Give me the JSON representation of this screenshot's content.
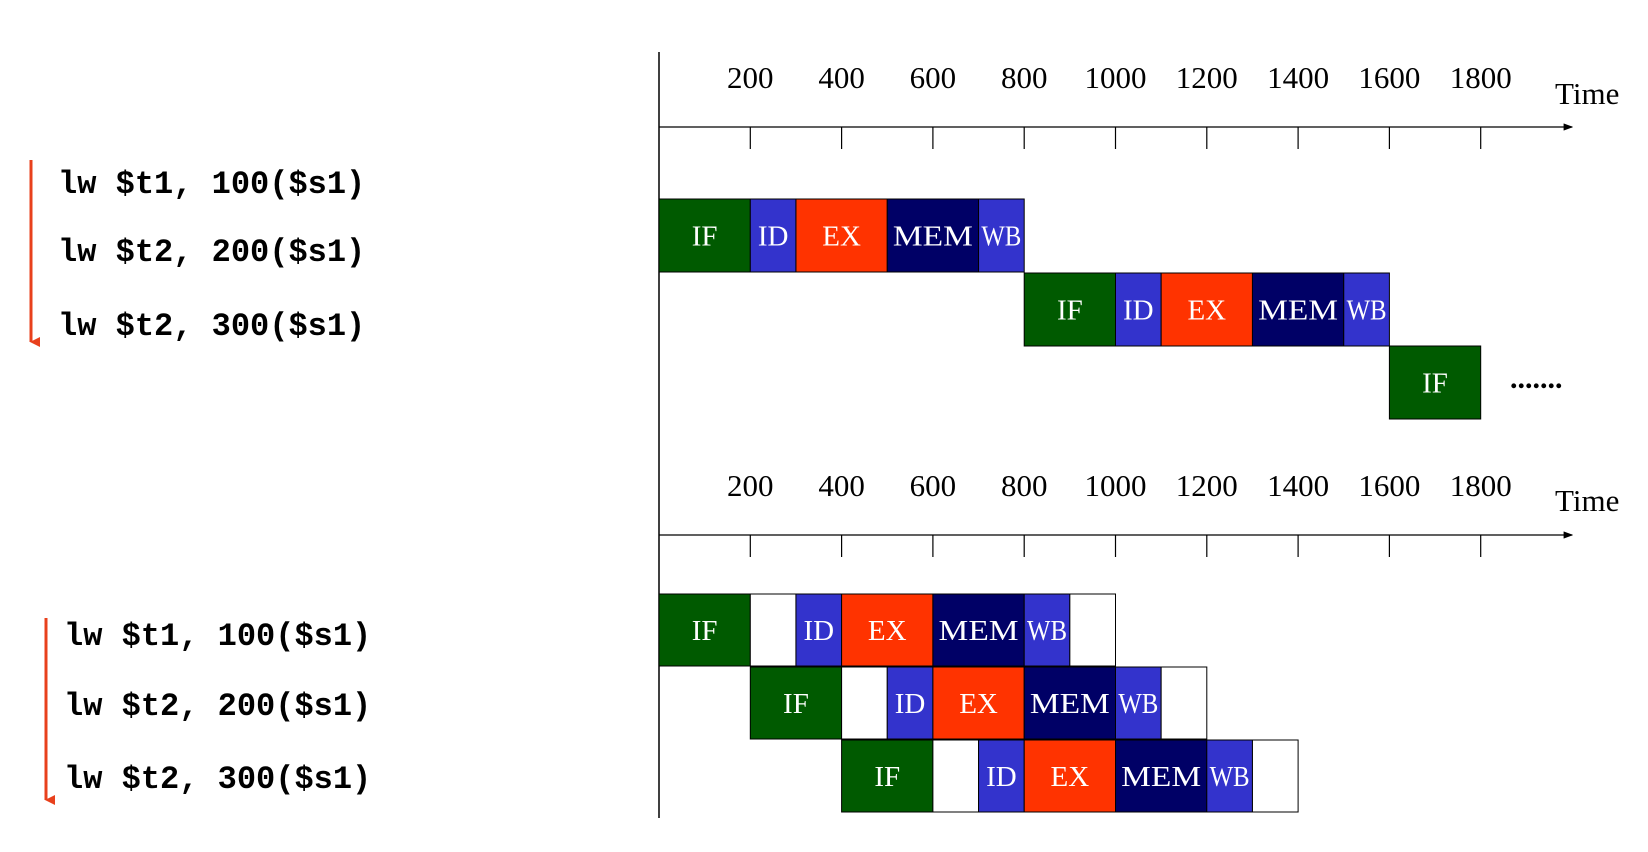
{
  "colors": {
    "IF": "#005a00",
    "ID": "#3333cc",
    "EX": "#ff3300",
    "MEM": "#000066",
    "WB": "#3333cc",
    "arrow": "#e8401c",
    "empty": "#ffffff"
  },
  "top": {
    "axis_title": "Time",
    "ticks": [
      "200",
      "400",
      "600",
      "800",
      "1000",
      "1200",
      "1400",
      "1600",
      "1800"
    ],
    "instructions": [
      "lw $t1, 100($s1)",
      "lw $t2, 200($s1)",
      "lw $t2, 300($s1)"
    ],
    "rows": [
      [
        [
          "IF",
          0,
          200
        ],
        [
          "ID",
          200,
          300
        ],
        [
          "EX",
          300,
          500
        ],
        [
          "MEM",
          500,
          700
        ],
        [
          "WB",
          700,
          800
        ]
      ],
      [
        [
          "IF",
          800,
          1000
        ],
        [
          "ID",
          1000,
          1100
        ],
        [
          "EX",
          1100,
          1300
        ],
        [
          "MEM",
          1300,
          1500
        ],
        [
          "WB",
          1500,
          1600
        ]
      ],
      [
        [
          "IF",
          1600,
          1800
        ]
      ]
    ],
    "continuation": "......."
  },
  "bottom": {
    "axis_title": "Time",
    "ticks": [
      "200",
      "400",
      "600",
      "800",
      "1000",
      "1200",
      "1400",
      "1600",
      "1800"
    ],
    "instructions": [
      "lw $t1, 100($s1)",
      "lw $t2, 200($s1)",
      "lw $t2, 300($s1)"
    ],
    "rows": [
      [
        [
          "IF",
          0,
          200
        ],
        [
          "",
          200,
          300
        ],
        [
          "ID",
          300,
          400
        ],
        [
          "EX",
          400,
          600
        ],
        [
          "MEM",
          600,
          800
        ],
        [
          "WB",
          800,
          900
        ],
        [
          "",
          900,
          1000
        ]
      ],
      [
        [
          "IF",
          200,
          400
        ],
        [
          "",
          400,
          500
        ],
        [
          "ID",
          500,
          600
        ],
        [
          "EX",
          600,
          800
        ],
        [
          "MEM",
          800,
          1000
        ],
        [
          "WB",
          1000,
          1100
        ],
        [
          "",
          1100,
          1200
        ]
      ],
      [
        [
          "IF",
          400,
          600
        ],
        [
          "",
          600,
          700
        ],
        [
          "ID",
          700,
          800
        ],
        [
          "EX",
          800,
          1000
        ],
        [
          "MEM",
          1000,
          1200
        ],
        [
          "WB",
          1200,
          1300
        ],
        [
          "",
          1300,
          1400
        ]
      ]
    ]
  }
}
